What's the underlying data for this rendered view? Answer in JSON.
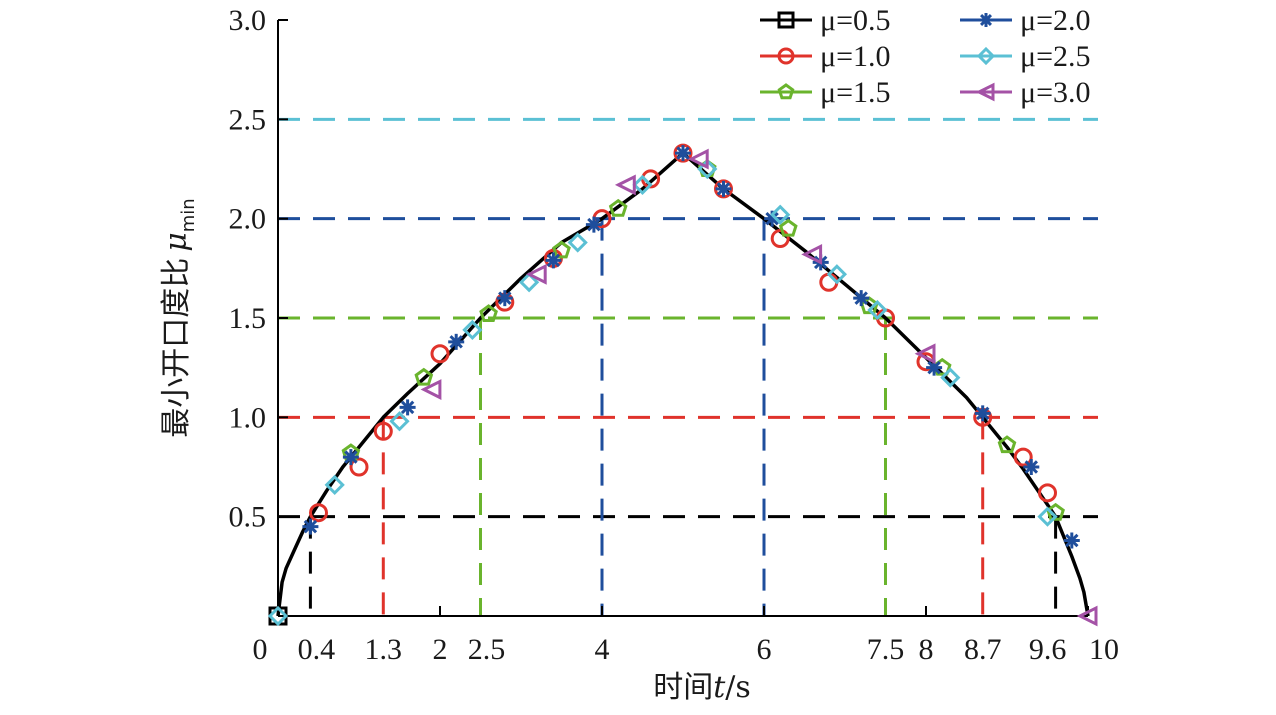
{
  "chart_data": {
    "type": "line",
    "xlabel": "时间t/s",
    "ylabel": "最小开口度比μmin",
    "ylabel_main": "最小开口度比",
    "ylabel_symbol": "μ",
    "ylabel_sub": "min",
    "xlabel_main": "时间",
    "xlabel_var": "t",
    "xlabel_unit": "/s",
    "xlim": [
      0,
      10
    ],
    "ylim": [
      0,
      3.0
    ],
    "x_ticks": [
      0,
      2,
      4,
      6,
      8,
      10
    ],
    "x_tick_labels": [
      "0",
      "0.4",
      "1.3",
      "2",
      "2.5",
      "4",
      "6",
      "7.5",
      "8",
      "8.7",
      "9.6",
      "10"
    ],
    "x_tick_label_values": [
      0,
      0.4,
      1.3,
      2,
      2.5,
      4,
      6,
      7.5,
      8,
      8.7,
      9.6,
      10
    ],
    "y_ticks": [
      0.5,
      1.0,
      1.5,
      2.0,
      2.5,
      3.0
    ],
    "y_tick_labels": [
      "0.5",
      "1.0",
      "1.5",
      "2.0",
      "2.5",
      "3.0"
    ],
    "grid": false,
    "legend_position": "top-right",
    "curve": {
      "x": [
        0,
        0.05,
        0.1,
        0.2,
        0.3,
        0.4,
        0.6,
        0.8,
        1.0,
        1.3,
        1.6,
        2.0,
        2.5,
        3.0,
        3.5,
        4.0,
        4.5,
        5.0,
        5.5,
        6.0,
        6.5,
        7.0,
        7.5,
        8.0,
        8.5,
        8.7,
        9.0,
        9.2,
        9.4,
        9.5,
        9.6,
        9.7,
        9.8,
        9.9,
        9.95,
        10.0
      ],
      "y": [
        0,
        0.17,
        0.24,
        0.33,
        0.42,
        0.5,
        0.63,
        0.75,
        0.85,
        1.0,
        1.12,
        1.27,
        1.5,
        1.7,
        1.88,
        2.0,
        2.15,
        2.33,
        2.15,
        2.0,
        1.84,
        1.67,
        1.5,
        1.3,
        1.1,
        1.0,
        0.85,
        0.74,
        0.62,
        0.56,
        0.5,
        0.4,
        0.3,
        0.19,
        0.12,
        0
      ]
    },
    "series": [
      {
        "name": "μ=0.5",
        "color": "#000000",
        "marker": "square"
      },
      {
        "name": "μ=1.0",
        "color": "#e0332b",
        "marker": "circle"
      },
      {
        "name": "μ=1.5",
        "color": "#6ab42d",
        "marker": "pentagon"
      },
      {
        "name": "μ=2.0",
        "color": "#1f4e9c",
        "marker": "asterisk"
      },
      {
        "name": "μ=2.5",
        "color": "#5bc0d4",
        "marker": "diamond"
      },
      {
        "name": "μ=3.0",
        "color": "#a452a6",
        "marker": "triangle-left"
      }
    ],
    "threshold_lines": [
      {
        "mu": 0.5,
        "color": "#000000",
        "t_start": 0.4,
        "t_end": 9.6
      },
      {
        "mu": 1.0,
        "color": "#e0332b",
        "t_start": 1.3,
        "t_end": 8.7
      },
      {
        "mu": 1.5,
        "color": "#6ab42d",
        "t_start": 2.5,
        "t_end": 7.5
      },
      {
        "mu": 2.0,
        "color": "#1f4e9c",
        "t_start": 4.0,
        "t_end": 6.0
      },
      {
        "mu": 2.5,
        "color": "#5bc0d4",
        "t_start": null,
        "t_end": null
      }
    ],
    "markers": {
      "μ=0.5": [
        [
          0,
          0
        ]
      ],
      "μ=1.0": [
        [
          0.5,
          0.52
        ],
        [
          1.0,
          0.75
        ],
        [
          1.3,
          0.93
        ],
        [
          2.0,
          1.32
        ],
        [
          2.8,
          1.58
        ],
        [
          3.4,
          1.8
        ],
        [
          4.0,
          2.0
        ],
        [
          4.6,
          2.2
        ],
        [
          5.0,
          2.33
        ],
        [
          5.5,
          2.15
        ],
        [
          6.2,
          1.9
        ],
        [
          6.8,
          1.68
        ],
        [
          7.5,
          1.5
        ],
        [
          8.0,
          1.28
        ],
        [
          8.7,
          1.0
        ],
        [
          9.2,
          0.8
        ],
        [
          9.5,
          0.62
        ]
      ],
      "μ=1.5": [
        [
          0.9,
          0.82
        ],
        [
          1.8,
          1.2
        ],
        [
          2.6,
          1.52
        ],
        [
          3.5,
          1.84
        ],
        [
          4.2,
          2.05
        ],
        [
          5.3,
          2.25
        ],
        [
          6.3,
          1.95
        ],
        [
          7.3,
          1.56
        ],
        [
          8.2,
          1.25
        ],
        [
          9.0,
          0.86
        ],
        [
          9.6,
          0.52
        ]
      ],
      "μ=2.0": [
        [
          0.4,
          0.45
        ],
        [
          0.9,
          0.8
        ],
        [
          1.6,
          1.05
        ],
        [
          2.2,
          1.38
        ],
        [
          2.8,
          1.6
        ],
        [
          3.4,
          1.79
        ],
        [
          3.9,
          1.97
        ],
        [
          5.0,
          2.33
        ],
        [
          5.5,
          2.15
        ],
        [
          6.1,
          2.0
        ],
        [
          6.7,
          1.78
        ],
        [
          7.2,
          1.6
        ],
        [
          8.1,
          1.25
        ],
        [
          8.7,
          1.02
        ],
        [
          9.3,
          0.75
        ],
        [
          9.8,
          0.38
        ]
      ],
      "μ=2.5": [
        [
          0,
          0
        ],
        [
          0.7,
          0.66
        ],
        [
          1.5,
          0.98
        ],
        [
          2.4,
          1.44
        ],
        [
          3.1,
          1.68
        ],
        [
          3.7,
          1.88
        ],
        [
          4.5,
          2.17
        ],
        [
          5.3,
          2.25
        ],
        [
          6.2,
          2.02
        ],
        [
          6.9,
          1.72
        ],
        [
          7.4,
          1.54
        ],
        [
          8.3,
          1.2
        ],
        [
          9.5,
          0.5
        ]
      ],
      "μ=3.0": [
        [
          1.9,
          1.14
        ],
        [
          3.2,
          1.72
        ],
        [
          4.3,
          2.17
        ],
        [
          5.2,
          2.3
        ],
        [
          6.6,
          1.82
        ],
        [
          8.0,
          1.32
        ],
        [
          10.0,
          0
        ]
      ]
    },
    "legend": {
      "items": [
        "μ=0.5",
        "μ=1.0",
        "μ=1.5",
        "μ=2.0",
        "μ=2.5",
        "μ=3.0"
      ]
    }
  }
}
